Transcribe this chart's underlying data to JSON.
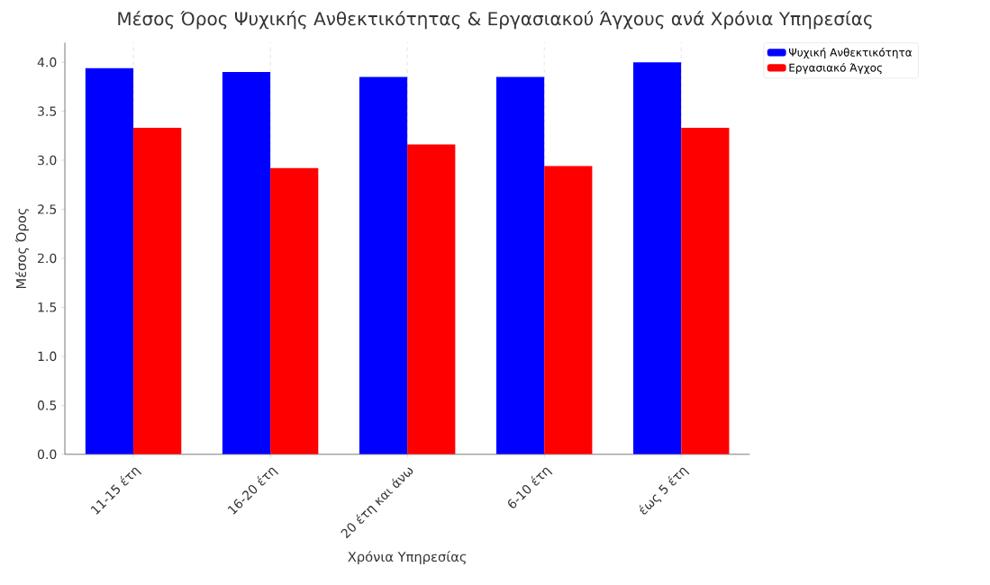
{
  "chart_data": {
    "type": "bar",
    "title": "Μέσος Όρος Ψυχικής Ανθεκτικότητας & Εργασιακού Άγχους ανά Χρόνια Υπηρεσίας",
    "xlabel": "Χρόνια Υπηρεσίας",
    "ylabel": "Μέσος Όρος",
    "categories": [
      "11-15 έτη",
      "16-20 έτη",
      "20 έτη και άνω",
      "6-10 έτη",
      "έως 5 έτη"
    ],
    "series": [
      {
        "name": "Ψυχική Ανθεκτικότητα",
        "color": "#0000ff",
        "values": [
          3.94,
          3.9,
          3.85,
          3.85,
          4.0
        ]
      },
      {
        "name": "Εργασιακό Άγχος",
        "color": "#ff0000",
        "values": [
          3.33,
          2.92,
          3.16,
          2.94,
          3.33
        ]
      }
    ],
    "ylim": [
      0,
      4.2
    ],
    "yticks": [
      {
        "value": 0,
        "label": "0.0"
      },
      {
        "value": 0.5,
        "label": "0.5"
      },
      {
        "value": 1,
        "label": "1.0"
      },
      {
        "value": 1.5,
        "label": "1.5"
      },
      {
        "value": 2,
        "label": "2.0"
      },
      {
        "value": 2.5,
        "label": "2.5"
      },
      {
        "value": 3,
        "label": "3.0"
      },
      {
        "value": 3.5,
        "label": "3.5"
      },
      {
        "value": 4,
        "label": "4.0"
      }
    ],
    "grid": "x",
    "legend": "top right"
  }
}
